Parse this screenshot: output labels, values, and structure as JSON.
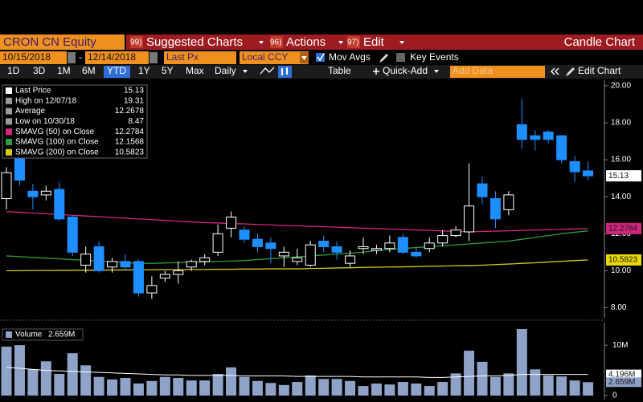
{
  "header": {
    "ticker": "CRON CN Equity",
    "menus": [
      {
        "num": "99)",
        "label": "Suggested Charts"
      },
      {
        "num": "96)",
        "label": "Actions"
      },
      {
        "num": "97)",
        "label": "Edit"
      }
    ],
    "chart_kind": "Candle Chart"
  },
  "settings": {
    "start_date": "10/15/2018",
    "date_separator": "-",
    "end_date": "12/14/2018",
    "field": "Last Px",
    "currency": "Local CCY",
    "mov_avgs": "Mov Avgs",
    "key_events": "Key Events"
  },
  "toolbar": {
    "periods": [
      "1D",
      "3D",
      "1M",
      "6M",
      "YTD",
      "1Y",
      "5Y",
      "Max"
    ],
    "active_period": 4,
    "frequency": "Daily",
    "table": "Table",
    "quick_add": "Quick-Add",
    "add_data": "Add Data",
    "edit_chart": "Edit Chart"
  },
  "chart_data": [
    {
      "type": "candlestick",
      "open": [
        13.9,
        16.2,
        14.3,
        14.1,
        14.4,
        12.9,
        10.3,
        11.3,
        10.2,
        10.5,
        10.5,
        8.8,
        9.6,
        9.8,
        10.2,
        10.5,
        11.0,
        12.3,
        12.2,
        11.7,
        11.5,
        10.8,
        10.5,
        10.3,
        11.6,
        11.3,
        10.4,
        11.2,
        11.1,
        11.2,
        11.8,
        11.0,
        11.2,
        11.5,
        11.9,
        12.1,
        14.7,
        13.9,
        13.3,
        17.9,
        17.3,
        17.5,
        17.3,
        15.9,
        15.4
      ],
      "high": [
        15.6,
        16.5,
        14.7,
        14.6,
        14.8,
        13.0,
        11.3,
        11.6,
        10.7,
        10.9,
        10.6,
        9.7,
        10.0,
        10.5,
        10.6,
        10.9,
        12.5,
        13.2,
        12.4,
        12.0,
        11.8,
        11.3,
        11.2,
        11.6,
        11.9,
        11.6,
        11.1,
        11.8,
        11.4,
        11.9,
        12.0,
        11.3,
        11.8,
        12.2,
        12.4,
        15.8,
        15.1,
        14.3,
        14.3,
        19.31,
        17.6,
        17.6,
        17.3,
        16.2,
        15.9
      ],
      "low": [
        13.3,
        14.6,
        13.3,
        13.8,
        12.7,
        10.8,
        9.9,
        9.9,
        9.9,
        10.0,
        8.6,
        8.47,
        9.4,
        9.3,
        10.0,
        10.3,
        10.8,
        11.8,
        11.5,
        11.0,
        10.4,
        10.2,
        10.3,
        10.2,
        11.0,
        10.6,
        10.2,
        10.9,
        10.9,
        11.0,
        10.9,
        10.7,
        11.0,
        11.3,
        11.8,
        11.6,
        13.6,
        12.3,
        13.0,
        16.6,
        16.5,
        16.9,
        15.8,
        14.8,
        14.9
      ],
      "close": [
        15.3,
        14.9,
        14.0,
        14.3,
        12.8,
        11.0,
        10.9,
        10.0,
        10.5,
        10.2,
        8.8,
        9.2,
        9.8,
        10.0,
        10.5,
        10.7,
        12.0,
        12.9,
        11.7,
        11.3,
        11.2,
        11.0,
        10.7,
        11.4,
        11.3,
        11.0,
        10.8,
        11.3,
        11.2,
        11.5,
        11.0,
        10.8,
        11.5,
        11.9,
        12.2,
        13.5,
        14.0,
        12.8,
        14.1,
        17.1,
        17.1,
        17.1,
        16.0,
        15.35,
        15.13
      ],
      "up_color": "#ffffff",
      "down_color": "#1e8fff",
      "series": [
        {
          "color": "#d0267f",
          "values": [
            13.2,
            13.16,
            13.12,
            13.08,
            13.04,
            13.0,
            12.96,
            12.92,
            12.88,
            12.84,
            12.8,
            12.76,
            12.72,
            12.68,
            12.64,
            12.6,
            12.58,
            12.55,
            12.53,
            12.5,
            12.48,
            12.45,
            12.43,
            12.4,
            12.38,
            12.35,
            12.33,
            12.3,
            12.28,
            12.25,
            12.23,
            12.2,
            12.18,
            12.15,
            12.13,
            12.1,
            12.12,
            12.14,
            12.16,
            12.18,
            12.2,
            12.22,
            12.24,
            12.26,
            12.2784
          ]
        },
        {
          "color": "#2f9a3a",
          "values": [
            10.8,
            10.76,
            10.72,
            10.68,
            10.64,
            10.6,
            10.56,
            10.52,
            10.48,
            10.44,
            10.4,
            10.4,
            10.42,
            10.44,
            10.46,
            10.48,
            10.5,
            10.52,
            10.55,
            10.6,
            10.65,
            10.7,
            10.75,
            10.8,
            10.85,
            10.9,
            10.95,
            11.0,
            11.1,
            11.15,
            11.2,
            11.25,
            11.3,
            11.35,
            11.4,
            11.45,
            11.5,
            11.55,
            11.6,
            11.7,
            11.8,
            11.9,
            12.0,
            12.08,
            12.1568
          ]
        },
        {
          "color": "#d8c81c",
          "values": [
            10.0,
            10.0,
            10.01,
            10.01,
            10.02,
            10.02,
            10.03,
            10.03,
            10.04,
            10.04,
            10.05,
            10.05,
            10.06,
            10.06,
            10.07,
            10.07,
            10.08,
            10.08,
            10.09,
            10.09,
            10.1,
            10.1,
            10.1,
            10.12,
            10.13,
            10.15,
            10.16,
            10.18,
            10.19,
            10.2,
            10.21,
            10.22,
            10.24,
            10.25,
            10.27,
            10.28,
            10.3,
            10.33,
            10.36,
            10.4,
            10.43,
            10.47,
            10.51,
            10.55,
            10.5823
          ]
        }
      ],
      "legend": [
        {
          "label": "Last Price",
          "value": "15.13",
          "color": "#ffffff"
        },
        {
          "label": "High on 12/07/18",
          "value": "19.31",
          "color": "#9a9a9a"
        },
        {
          "label": "Average",
          "value": "12.2678",
          "color": "#9a9a9a"
        },
        {
          "label": "Low on 10/30/18",
          "value": "8.47",
          "color": "#9a9a9a"
        },
        {
          "label": "SMAVG (50)  on Close",
          "value": "12.2784",
          "color": "#d0267f"
        },
        {
          "label": "SMAVG (100)  on Close",
          "value": "12.1568",
          "color": "#2f9a3a"
        },
        {
          "label": "SMAVG (200)  on Close",
          "value": "10.5823",
          "color": "#d8c81c"
        }
      ],
      "markers": [
        {
          "value": 15.13,
          "label": "15.13",
          "color": "#ffffff"
        },
        {
          "value": 12.2784,
          "label": "12.2784",
          "color": "#d0267f"
        },
        {
          "value": 10.5823,
          "label": "10.5823",
          "color": "#e8d800"
        }
      ],
      "ylim": [
        7.5,
        20.3
      ],
      "yticks": [
        {
          "value": 8,
          "label": "8.00"
        },
        {
          "value": 10,
          "label": "10.00"
        },
        {
          "value": 12,
          "label": "12.00"
        },
        {
          "value": 14,
          "label": "14.00"
        },
        {
          "value": 16,
          "label": "16.00"
        },
        {
          "value": 18,
          "label": "18.00"
        },
        {
          "value": 20,
          "label": "20.00"
        }
      ]
    },
    {
      "type": "bar",
      "title": "Volume",
      "legend_value": "2.659M",
      "color": "#8fa3c9",
      "values": [
        9.7,
        10.0,
        5.2,
        6.8,
        4.3,
        8.4,
        6.0,
        3.7,
        3.2,
        3.5,
        2.4,
        2.9,
        3.7,
        3.5,
        3.0,
        3.0,
        4.3,
        5.6,
        3.7,
        2.9,
        2.5,
        2.1,
        2.7,
        4.0,
        3.3,
        3.3,
        2.9,
        1.9,
        2.4,
        2.2,
        2.7,
        2.4,
        1.9,
        2.7,
        4.4,
        8.9,
        6.7,
        3.7,
        4.4,
        13.2,
        5.2,
        4.0,
        3.8,
        3.0,
        2.659
      ],
      "average": {
        "color": "#ffffff",
        "values": [
          5.6,
          5.4,
          5.2,
          5.0,
          4.9,
          4.8,
          4.7,
          4.6,
          4.5,
          4.4,
          4.3,
          4.2,
          4.1,
          4.1,
          4.0,
          4.0,
          4.0,
          4.0,
          3.9,
          3.9,
          3.9,
          3.9,
          3.8,
          3.8,
          3.8,
          3.8,
          3.8,
          3.7,
          3.7,
          3.7,
          3.7,
          3.7,
          3.6,
          3.6,
          3.7,
          3.8,
          3.9,
          3.9,
          4.0,
          4.2,
          4.2,
          4.2,
          4.2,
          4.2,
          4.196
        ]
      },
      "markers": [
        {
          "value": 4.196,
          "label": "4.196M",
          "color": "#ffffff"
        },
        {
          "value": 2.659,
          "label": "2.659M",
          "color": "#8fa3c9"
        }
      ],
      "ylim": [
        0,
        14
      ],
      "yticks": [
        0,
        {
          "value": 10,
          "label": "10M"
        }
      ]
    }
  ]
}
